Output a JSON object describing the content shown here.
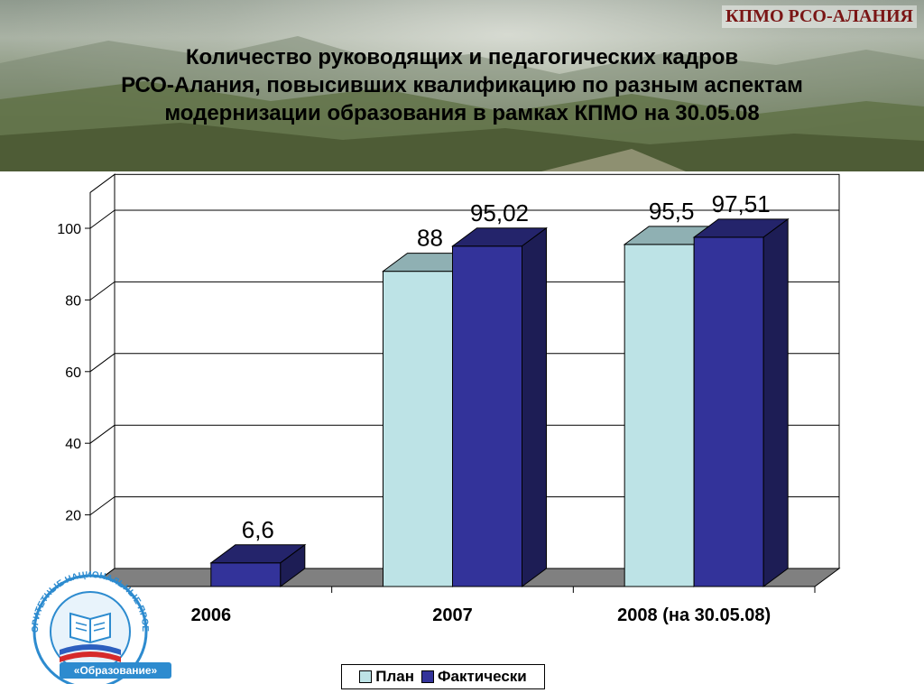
{
  "slide": {
    "badge": "КПМО РСО-АЛАНИЯ",
    "title_lines": [
      "Количество руководящих и педагогических кадров",
      "РСО-Алания, повысивших квалификацию по разным аспектам",
      "модернизации образования в рамках КПМО на 30.05.08"
    ],
    "logo": {
      "icon": "book-icon",
      "ring_text": "ПРИОРИТЕТНЫЕ НАЦИОНАЛЬНЫЕ ПРОЕКТЫ",
      "label": "«Образование»"
    }
  },
  "chart_data": {
    "type": "bar",
    "style": "3d-clustered",
    "categories": [
      "2006",
      "2007",
      "2008 (на 30.05.08)"
    ],
    "series": [
      {
        "name": "План",
        "values": [
          null,
          88,
          95.5
        ],
        "labels": [
          "",
          "88",
          "95,5"
        ],
        "color": "#bde3e6"
      },
      {
        "name": "Фактически",
        "values": [
          6.6,
          95.02,
          97.51
        ],
        "labels": [
          "6,6",
          "95,02",
          "97,51"
        ],
        "color": "#33339a"
      }
    ],
    "y_ticks": [
      "20",
      "40",
      "60",
      "80",
      "100"
    ],
    "ylim": [
      0,
      110
    ],
    "gridlines": true,
    "legend_position": "bottom",
    "colors": {
      "floor": "#808080",
      "plan_side": "#7b9ea1",
      "fact_side": "#1d1d55",
      "fact_top": "#24246b",
      "plan_top": "#8fb0b3"
    }
  }
}
